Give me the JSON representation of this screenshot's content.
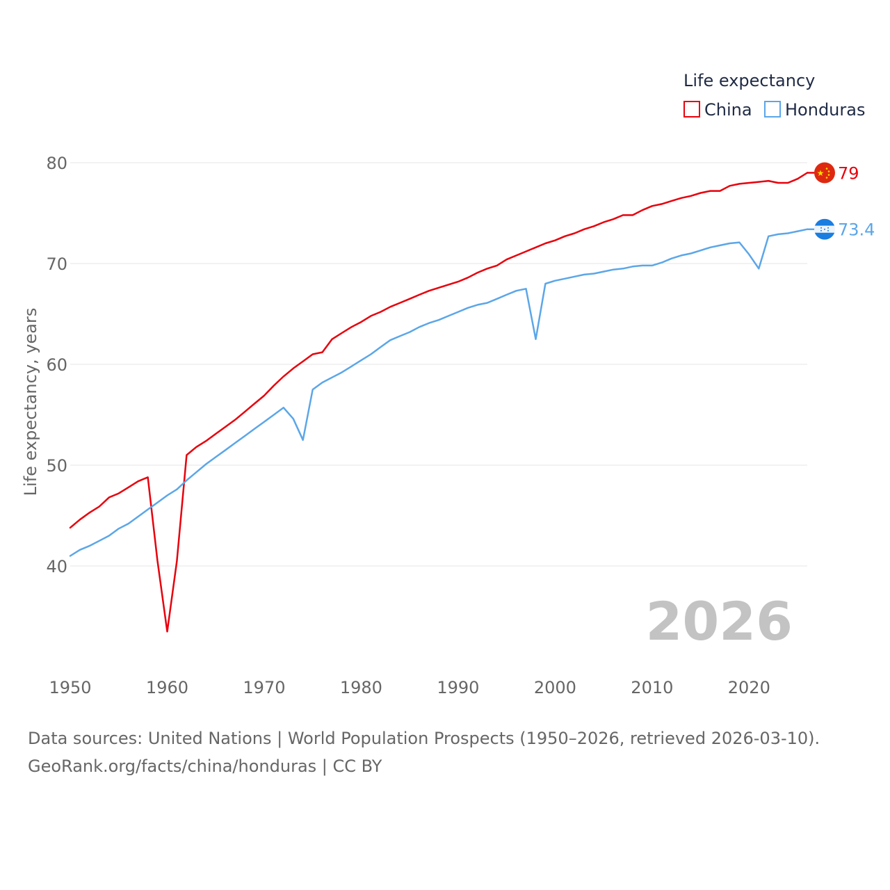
{
  "chart_data": {
    "type": "line",
    "legend_title": "Life expectancy",
    "ylabel": "Life expectancy, years",
    "xlabel": "",
    "xlim": [
      1950,
      2026
    ],
    "ylim": [
      33,
      82
    ],
    "x_ticks": [
      1950,
      1960,
      1970,
      1980,
      1990,
      2000,
      2010,
      2020
    ],
    "y_ticks": [
      40,
      50,
      60,
      70,
      80
    ],
    "grid": true,
    "legend_position": "top-right",
    "year_label": "2026",
    "series": [
      {
        "name": "China",
        "color": "#e8000b",
        "end_label": "79",
        "flag": "china-flag",
        "points": [
          [
            1950,
            43.8
          ],
          [
            1951,
            44.6
          ],
          [
            1952,
            45.3
          ],
          [
            1953,
            45.9
          ],
          [
            1954,
            46.8
          ],
          [
            1955,
            47.2
          ],
          [
            1956,
            47.8
          ],
          [
            1957,
            48.4
          ],
          [
            1958,
            48.8
          ],
          [
            1959,
            40.5
          ],
          [
            1960,
            33.5
          ],
          [
            1961,
            40.5
          ],
          [
            1962,
            51.0
          ],
          [
            1963,
            51.8
          ],
          [
            1964,
            52.4
          ],
          [
            1965,
            53.1
          ],
          [
            1966,
            53.8
          ],
          [
            1967,
            54.5
          ],
          [
            1968,
            55.3
          ],
          [
            1969,
            56.1
          ],
          [
            1970,
            56.9
          ],
          [
            1971,
            57.9
          ],
          [
            1972,
            58.8
          ],
          [
            1973,
            59.6
          ],
          [
            1974,
            60.3
          ],
          [
            1975,
            61.0
          ],
          [
            1976,
            61.2
          ],
          [
            1977,
            62.5
          ],
          [
            1978,
            63.1
          ],
          [
            1979,
            63.7
          ],
          [
            1980,
            64.2
          ],
          [
            1981,
            64.8
          ],
          [
            1982,
            65.2
          ],
          [
            1983,
            65.7
          ],
          [
            1984,
            66.1
          ],
          [
            1985,
            66.5
          ],
          [
            1986,
            66.9
          ],
          [
            1987,
            67.3
          ],
          [
            1988,
            67.6
          ],
          [
            1989,
            67.9
          ],
          [
            1990,
            68.2
          ],
          [
            1991,
            68.6
          ],
          [
            1992,
            69.1
          ],
          [
            1993,
            69.5
          ],
          [
            1994,
            69.8
          ],
          [
            1995,
            70.4
          ],
          [
            1996,
            70.8
          ],
          [
            1997,
            71.2
          ],
          [
            1998,
            71.6
          ],
          [
            1999,
            72.0
          ],
          [
            2000,
            72.3
          ],
          [
            2001,
            72.7
          ],
          [
            2002,
            73.0
          ],
          [
            2003,
            73.4
          ],
          [
            2004,
            73.7
          ],
          [
            2005,
            74.1
          ],
          [
            2006,
            74.4
          ],
          [
            2007,
            74.8
          ],
          [
            2008,
            74.8
          ],
          [
            2009,
            75.3
          ],
          [
            2010,
            75.7
          ],
          [
            2011,
            75.9
          ],
          [
            2012,
            76.2
          ],
          [
            2013,
            76.5
          ],
          [
            2014,
            76.7
          ],
          [
            2015,
            77.0
          ],
          [
            2016,
            77.2
          ],
          [
            2017,
            77.2
          ],
          [
            2018,
            77.7
          ],
          [
            2019,
            77.9
          ],
          [
            2020,
            78.0
          ],
          [
            2021,
            78.1
          ],
          [
            2022,
            78.2
          ],
          [
            2023,
            78.0
          ],
          [
            2024,
            78.0
          ],
          [
            2025,
            78.4
          ],
          [
            2026,
            79.0
          ]
        ]
      },
      {
        "name": "Honduras",
        "color": "#5ba6e8",
        "end_label": "73.4",
        "flag": "honduras-flag",
        "points": [
          [
            1950,
            41.0
          ],
          [
            1951,
            41.6
          ],
          [
            1952,
            42.0
          ],
          [
            1953,
            42.5
          ],
          [
            1954,
            43.0
          ],
          [
            1955,
            43.7
          ],
          [
            1956,
            44.2
          ],
          [
            1957,
            44.9
          ],
          [
            1958,
            45.6
          ],
          [
            1959,
            46.3
          ],
          [
            1960,
            47.0
          ],
          [
            1961,
            47.6
          ],
          [
            1962,
            48.5
          ],
          [
            1963,
            49.3
          ],
          [
            1964,
            50.1
          ],
          [
            1965,
            50.8
          ],
          [
            1966,
            51.5
          ],
          [
            1967,
            52.2
          ],
          [
            1968,
            52.9
          ],
          [
            1969,
            53.6
          ],
          [
            1970,
            54.3
          ],
          [
            1971,
            55.0
          ],
          [
            1972,
            55.7
          ],
          [
            1973,
            54.6
          ],
          [
            1974,
            52.5
          ],
          [
            1975,
            57.5
          ],
          [
            1976,
            58.2
          ],
          [
            1977,
            58.7
          ],
          [
            1978,
            59.2
          ],
          [
            1979,
            59.8
          ],
          [
            1980,
            60.4
          ],
          [
            1981,
            61.0
          ],
          [
            1982,
            61.7
          ],
          [
            1983,
            62.4
          ],
          [
            1984,
            62.8
          ],
          [
            1985,
            63.2
          ],
          [
            1986,
            63.7
          ],
          [
            1987,
            64.1
          ],
          [
            1988,
            64.4
          ],
          [
            1989,
            64.8
          ],
          [
            1990,
            65.2
          ],
          [
            1991,
            65.6
          ],
          [
            1992,
            65.9
          ],
          [
            1993,
            66.1
          ],
          [
            1994,
            66.5
          ],
          [
            1995,
            66.9
          ],
          [
            1996,
            67.3
          ],
          [
            1997,
            67.5
          ],
          [
            1998,
            62.5
          ],
          [
            1999,
            68.0
          ],
          [
            2000,
            68.3
          ],
          [
            2001,
            68.5
          ],
          [
            2002,
            68.7
          ],
          [
            2003,
            68.9
          ],
          [
            2004,
            69.0
          ],
          [
            2005,
            69.2
          ],
          [
            2006,
            69.4
          ],
          [
            2007,
            69.5
          ],
          [
            2008,
            69.7
          ],
          [
            2009,
            69.8
          ],
          [
            2010,
            69.8
          ],
          [
            2011,
            70.1
          ],
          [
            2012,
            70.5
          ],
          [
            2013,
            70.8
          ],
          [
            2014,
            71.0
          ],
          [
            2015,
            71.3
          ],
          [
            2016,
            71.6
          ],
          [
            2017,
            71.8
          ],
          [
            2018,
            72.0
          ],
          [
            2019,
            72.1
          ],
          [
            2020,
            70.9
          ],
          [
            2021,
            69.5
          ],
          [
            2022,
            72.7
          ],
          [
            2023,
            72.9
          ],
          [
            2024,
            73.0
          ],
          [
            2025,
            73.2
          ],
          [
            2026,
            73.4
          ]
        ]
      }
    ]
  },
  "footer": {
    "source_line": "Data sources: United Nations | World Population Prospects (1950–2026, retrieved 2026-03-10).",
    "credit_line": "GeoRank.org/facts/china/honduras | CC BY"
  }
}
